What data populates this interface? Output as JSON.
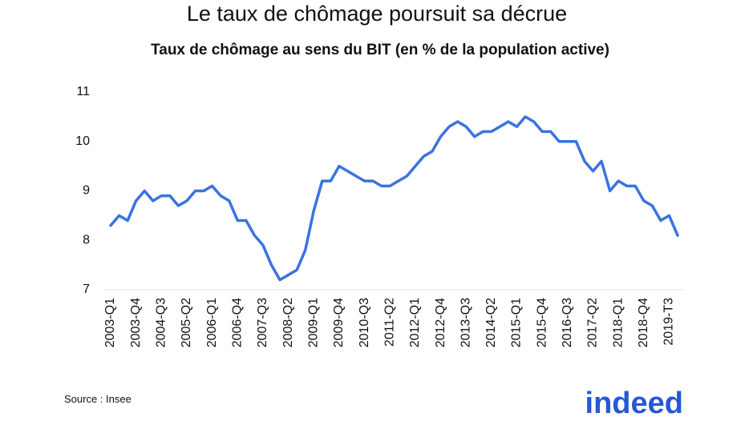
{
  "chart_data": {
    "type": "line",
    "title": "Le taux de chômage poursuit sa décrue",
    "subtitle": "Taux de chômage au sens du BIT (en % de la population active)",
    "source": "Source : Insee",
    "logo": "indeed",
    "categories": [
      "2003-Q1",
      null,
      null,
      "2003-Q4",
      null,
      null,
      "2004-Q3",
      null,
      null,
      "2005-Q2",
      null,
      null,
      "2006-Q1",
      null,
      null,
      "2006-Q4",
      null,
      null,
      "2007-Q3",
      null,
      null,
      "2008-Q2",
      null,
      null,
      "2009-Q1",
      null,
      null,
      "2009-Q4",
      null,
      null,
      "2010-Q3",
      null,
      null,
      "2011-Q2",
      null,
      null,
      "2012-Q1",
      null,
      null,
      "2012-Q4",
      null,
      null,
      "2013-Q3",
      null,
      null,
      "2014-Q2",
      null,
      null,
      "2015-Q1",
      null,
      null,
      "2015-Q4",
      null,
      null,
      "2016-Q3",
      null,
      null,
      "2017-Q2",
      null,
      null,
      "2018-Q1",
      null,
      null,
      "2018-Q4",
      null,
      null,
      "2019-T3",
      null
    ],
    "series": [
      {
        "name": "Taux de chômage",
        "color": "#3a73e0",
        "values": [
          8.3,
          8.5,
          8.4,
          8.8,
          9.0,
          8.8,
          8.9,
          8.9,
          8.7,
          8.8,
          9.0,
          9.0,
          9.1,
          8.9,
          8.8,
          8.4,
          8.4,
          8.1,
          7.9,
          7.5,
          7.2,
          7.3,
          7.4,
          7.8,
          8.6,
          9.2,
          9.2,
          9.5,
          9.4,
          9.3,
          9.2,
          9.2,
          9.1,
          9.1,
          9.2,
          9.3,
          9.5,
          9.7,
          9.8,
          10.1,
          10.3,
          10.4,
          10.3,
          10.1,
          10.2,
          10.2,
          10.3,
          10.4,
          10.3,
          10.5,
          10.4,
          10.2,
          10.2,
          10.0,
          10.0,
          10.0,
          9.6,
          9.4,
          9.6,
          9.0,
          9.2,
          9.1,
          9.1,
          8.8,
          8.7,
          8.4,
          8.5,
          8.1
        ]
      }
    ],
    "ylim": [
      7,
      11
    ],
    "yticks": [
      7,
      8,
      9,
      10,
      11
    ],
    "grid": false
  }
}
